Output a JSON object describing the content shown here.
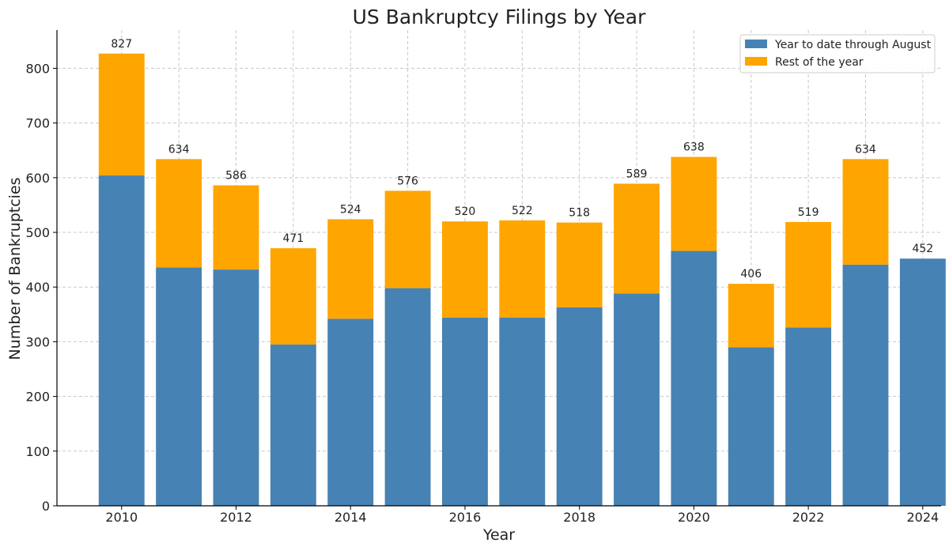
{
  "chart_data": {
    "type": "bar",
    "stacked": true,
    "title": "US Bankruptcy Filings by Year",
    "xlabel": "Year",
    "ylabel": "Number of Bankruptcies",
    "categories": [
      "2010",
      "2011",
      "2012",
      "2013",
      "2014",
      "2015",
      "2016",
      "2017",
      "2018",
      "2019",
      "2020",
      "2021",
      "2022",
      "2023",
      "2024"
    ],
    "x_tick_labels": [
      "2010",
      "2012",
      "2014",
      "2016",
      "2018",
      "2020",
      "2022",
      "2024"
    ],
    "y_ticks": [
      0,
      100,
      200,
      300,
      400,
      500,
      600,
      700,
      800
    ],
    "ylim": [
      0,
      870
    ],
    "grid": true,
    "legend_position": "top-right",
    "series": [
      {
        "name": "Year to date through August",
        "color": "#4682b4",
        "values": [
          604,
          436,
          432,
          295,
          342,
          398,
          344,
          344,
          363,
          388,
          466,
          290,
          326,
          441,
          452
        ]
      },
      {
        "name": "Rest of the year",
        "color": "#ffa500",
        "values": [
          223,
          198,
          154,
          176,
          182,
          178,
          176,
          178,
          155,
          201,
          172,
          116,
          193,
          193,
          0
        ]
      }
    ],
    "totals": [
      827,
      634,
      586,
      471,
      524,
      576,
      520,
      522,
      518,
      589,
      638,
      406,
      519,
      634,
      452
    ],
    "total_labels": [
      "827",
      "634",
      "586",
      "471",
      "524",
      "576",
      "520",
      "522",
      "518",
      "589",
      "638",
      "406",
      "519",
      "634",
      "452"
    ]
  }
}
